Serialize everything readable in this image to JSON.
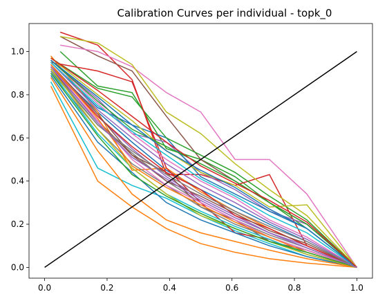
{
  "chart_data": {
    "type": "line",
    "title": "Calibration Curves per individual - topk_0",
    "xlabel": "",
    "ylabel": "",
    "xlim": [
      -0.05,
      1.05
    ],
    "ylim": [
      -0.05,
      1.13
    ],
    "xticks": [
      "0.0",
      "0.2",
      "0.4",
      "0.6",
      "0.8",
      "1.0"
    ],
    "xtick_values": [
      0.0,
      0.2,
      0.4,
      0.6,
      0.8,
      1.0
    ],
    "yticks": [
      "0.0",
      "0.2",
      "0.4",
      "0.6",
      "0.8",
      "1.0"
    ],
    "ytick_values": [
      0.0,
      0.2,
      0.4,
      0.6,
      0.8,
      1.0
    ],
    "grid": false,
    "reference_line": {
      "x": [
        0.0,
        1.0
      ],
      "y": [
        0.0,
        1.0
      ],
      "color": "#000000"
    },
    "series": [
      {
        "color": "#1f77b4",
        "x": [
          0.02,
          0.17,
          0.28,
          0.39,
          0.5,
          0.61,
          0.72,
          0.84,
          1.0
        ],
        "y": [
          0.93,
          0.72,
          0.58,
          0.45,
          0.36,
          0.28,
          0.2,
          0.12,
          0.0
        ]
      },
      {
        "color": "#ff7f0e",
        "x": [
          0.02,
          0.17,
          0.28,
          0.39,
          0.5,
          0.61,
          0.72,
          0.84,
          1.0
        ],
        "y": [
          0.84,
          0.4,
          0.28,
          0.18,
          0.11,
          0.07,
          0.04,
          0.02,
          0.0
        ]
      },
      {
        "color": "#2ca02c",
        "x": [
          0.05,
          0.17,
          0.28,
          0.39,
          0.5,
          0.61,
          0.72,
          0.84,
          1.0
        ],
        "y": [
          1.0,
          0.84,
          0.81,
          0.55,
          0.5,
          0.42,
          0.3,
          0.18,
          0.0
        ]
      },
      {
        "color": "#d62728",
        "x": [
          0.05,
          0.17,
          0.28,
          0.39,
          0.5,
          0.61,
          0.72,
          0.84,
          1.0
        ],
        "y": [
          1.09,
          1.03,
          0.87,
          0.43,
          0.43,
          0.38,
          0.43,
          0.1,
          0.0
        ]
      },
      {
        "color": "#9467bd",
        "x": [
          0.02,
          0.17,
          0.28,
          0.39,
          0.5,
          0.61,
          0.72,
          0.84,
          1.0
        ],
        "y": [
          0.96,
          0.78,
          0.62,
          0.58,
          0.44,
          0.36,
          0.26,
          0.2,
          0.0
        ]
      },
      {
        "color": "#8c564b",
        "x": [
          0.05,
          0.17,
          0.28,
          0.39,
          0.5,
          0.61,
          0.72,
          0.84,
          1.0
        ],
        "y": [
          1.07,
          0.98,
          0.91,
          0.7,
          0.5,
          0.4,
          0.3,
          0.2,
          0.0
        ]
      },
      {
        "color": "#e377c2",
        "x": [
          0.05,
          0.17,
          0.28,
          0.39,
          0.5,
          0.61,
          0.72,
          0.84,
          1.0
        ],
        "y": [
          1.03,
          1.0,
          0.93,
          0.81,
          0.72,
          0.5,
          0.5,
          0.34,
          0.0
        ]
      },
      {
        "color": "#7f7f7f",
        "x": [
          0.02,
          0.17,
          0.28,
          0.39,
          0.5,
          0.61,
          0.72,
          0.84,
          1.0
        ],
        "y": [
          0.92,
          0.66,
          0.53,
          0.4,
          0.3,
          0.22,
          0.15,
          0.09,
          0.0
        ]
      },
      {
        "color": "#bcbd22",
        "x": [
          0.05,
          0.17,
          0.28,
          0.39,
          0.5,
          0.61,
          0.72,
          0.84,
          1.0
        ],
        "y": [
          1.07,
          1.04,
          0.94,
          0.72,
          0.62,
          0.48,
          0.36,
          0.24,
          0.0
        ]
      },
      {
        "color": "#17becf",
        "x": [
          0.02,
          0.17,
          0.28,
          0.39,
          0.5,
          0.61,
          0.72,
          0.84,
          1.0
        ],
        "y": [
          0.86,
          0.46,
          0.38,
          0.32,
          0.24,
          0.17,
          0.11,
          0.05,
          0.0
        ]
      },
      {
        "color": "#1f77b4",
        "x": [
          0.02,
          0.17,
          0.28,
          0.39,
          0.5,
          0.61,
          0.72,
          0.84,
          1.0
        ],
        "y": [
          0.95,
          0.74,
          0.66,
          0.6,
          0.42,
          0.34,
          0.26,
          0.18,
          0.0
        ]
      },
      {
        "color": "#ff7f0e",
        "x": [
          0.02,
          0.17,
          0.28,
          0.39,
          0.5,
          0.61,
          0.72,
          0.84,
          1.0
        ],
        "y": [
          0.98,
          0.72,
          0.45,
          0.46,
          0.35,
          0.26,
          0.18,
          0.1,
          0.0
        ]
      },
      {
        "color": "#2ca02c",
        "x": [
          0.02,
          0.17,
          0.28,
          0.39,
          0.5,
          0.61,
          0.72,
          0.84,
          1.0
        ],
        "y": [
          0.97,
          0.83,
          0.79,
          0.6,
          0.52,
          0.44,
          0.33,
          0.22,
          0.0
        ]
      },
      {
        "color": "#d62728",
        "x": [
          0.02,
          0.17,
          0.28,
          0.39,
          0.5,
          0.61,
          0.72,
          0.84,
          1.0
        ],
        "y": [
          0.95,
          0.91,
          0.86,
          0.46,
          0.3,
          0.16,
          0.13,
          0.06,
          0.0
        ]
      },
      {
        "color": "#9467bd",
        "x": [
          0.02,
          0.17,
          0.28,
          0.39,
          0.5,
          0.61,
          0.72,
          0.84,
          1.0
        ],
        "y": [
          0.94,
          0.7,
          0.55,
          0.42,
          0.32,
          0.24,
          0.16,
          0.1,
          0.0
        ]
      },
      {
        "color": "#8c564b",
        "x": [
          0.02,
          0.17,
          0.28,
          0.39,
          0.5,
          0.61,
          0.72,
          0.84,
          1.0
        ],
        "y": [
          0.92,
          0.68,
          0.52,
          0.44,
          0.28,
          0.22,
          0.12,
          0.08,
          0.0
        ]
      },
      {
        "color": "#e377c2",
        "x": [
          0.02,
          0.17,
          0.28,
          0.39,
          0.5,
          0.61,
          0.72,
          0.84,
          1.0
        ],
        "y": [
          0.96,
          0.76,
          0.62,
          0.5,
          0.4,
          0.32,
          0.22,
          0.14,
          0.0
        ]
      },
      {
        "color": "#7f7f7f",
        "x": [
          0.02,
          0.17,
          0.28,
          0.39,
          0.5,
          0.61,
          0.72,
          0.84,
          1.0
        ],
        "y": [
          0.9,
          0.64,
          0.48,
          0.38,
          0.28,
          0.2,
          0.14,
          0.08,
          0.0
        ]
      },
      {
        "color": "#bcbd22",
        "x": [
          0.02,
          0.17,
          0.28,
          0.39,
          0.5,
          0.61,
          0.72,
          0.84,
          1.0
        ],
        "y": [
          0.97,
          0.8,
          0.68,
          0.54,
          0.44,
          0.38,
          0.28,
          0.29,
          0.0
        ]
      },
      {
        "color": "#17becf",
        "x": [
          0.02,
          0.17,
          0.28,
          0.39,
          0.5,
          0.61,
          0.72,
          0.84,
          1.0
        ],
        "y": [
          0.91,
          0.62,
          0.46,
          0.34,
          0.26,
          0.19,
          0.13,
          0.06,
          0.0
        ]
      },
      {
        "color": "#1f77b4",
        "x": [
          0.02,
          0.17,
          0.28,
          0.39,
          0.5,
          0.61,
          0.72,
          0.84,
          1.0
        ],
        "y": [
          0.89,
          0.58,
          0.44,
          0.3,
          0.22,
          0.16,
          0.1,
          0.05,
          0.0
        ]
      },
      {
        "color": "#ff7f0e",
        "x": [
          0.02,
          0.17,
          0.28,
          0.39,
          0.5,
          0.61,
          0.72,
          0.84,
          1.0
        ],
        "y": [
          0.88,
          0.54,
          0.34,
          0.22,
          0.16,
          0.12,
          0.08,
          0.04,
          0.0
        ]
      },
      {
        "color": "#2ca02c",
        "x": [
          0.02,
          0.17,
          0.28,
          0.39,
          0.5,
          0.61,
          0.72,
          0.84,
          1.0
        ],
        "y": [
          0.96,
          0.77,
          0.64,
          0.56,
          0.48,
          0.4,
          0.3,
          0.2,
          0.0
        ]
      },
      {
        "color": "#d62728",
        "x": [
          0.02,
          0.17,
          0.28,
          0.39,
          0.5,
          0.61,
          0.72,
          0.84,
          1.0
        ],
        "y": [
          0.93,
          0.7,
          0.56,
          0.44,
          0.36,
          0.24,
          0.18,
          0.1,
          0.0
        ]
      },
      {
        "color": "#9467bd",
        "x": [
          0.02,
          0.17,
          0.28,
          0.39,
          0.5,
          0.61,
          0.72,
          0.84,
          1.0
        ],
        "y": [
          0.95,
          0.73,
          0.6,
          0.48,
          0.38,
          0.3,
          0.21,
          0.13,
          0.0
        ]
      },
      {
        "color": "#8c564b",
        "x": [
          0.02,
          0.17,
          0.28,
          0.39,
          0.5,
          0.61,
          0.72,
          0.84,
          1.0
        ],
        "y": [
          0.94,
          0.71,
          0.52,
          0.4,
          0.33,
          0.25,
          0.17,
          0.11,
          0.0
        ]
      },
      {
        "color": "#e377c2",
        "x": [
          0.02,
          0.17,
          0.28,
          0.39,
          0.5,
          0.61,
          0.72,
          0.84,
          1.0
        ],
        "y": [
          0.93,
          0.68,
          0.5,
          0.38,
          0.3,
          0.22,
          0.14,
          0.08,
          0.0
        ]
      },
      {
        "color": "#7f7f7f",
        "x": [
          0.02,
          0.17,
          0.28,
          0.39,
          0.5,
          0.61,
          0.72,
          0.84,
          1.0
        ],
        "y": [
          0.91,
          0.66,
          0.54,
          0.43,
          0.34,
          0.26,
          0.19,
          0.12,
          0.0
        ]
      },
      {
        "color": "#bcbd22",
        "x": [
          0.02,
          0.17,
          0.28,
          0.39,
          0.5,
          0.61,
          0.72,
          0.84,
          1.0
        ],
        "y": [
          0.92,
          0.64,
          0.46,
          0.34,
          0.24,
          0.18,
          0.12,
          0.06,
          0.0
        ]
      },
      {
        "color": "#17becf",
        "x": [
          0.02,
          0.17,
          0.28,
          0.39,
          0.5,
          0.61,
          0.72,
          0.84,
          1.0
        ],
        "y": [
          0.95,
          0.75,
          0.63,
          0.52,
          0.41,
          0.33,
          0.24,
          0.16,
          0.0
        ]
      },
      {
        "color": "#1f77b4",
        "x": [
          0.02,
          0.17,
          0.28,
          0.39,
          0.5,
          0.61,
          0.72,
          0.84,
          1.0
        ],
        "y": [
          0.96,
          0.79,
          0.66,
          0.54,
          0.45,
          0.37,
          0.27,
          0.18,
          0.0
        ]
      },
      {
        "color": "#ff7f0e",
        "x": [
          0.02,
          0.17,
          0.28,
          0.39,
          0.5,
          0.61,
          0.72,
          0.84,
          1.0
        ],
        "y": [
          0.94,
          0.69,
          0.47,
          0.37,
          0.29,
          0.21,
          0.14,
          0.07,
          0.0
        ]
      },
      {
        "color": "#2ca02c",
        "x": [
          0.02,
          0.17,
          0.28,
          0.39,
          0.5,
          0.61,
          0.72,
          0.84,
          1.0
        ],
        "y": [
          0.9,
          0.61,
          0.43,
          0.33,
          0.25,
          0.18,
          0.12,
          0.07,
          0.0
        ]
      },
      {
        "color": "#d62728",
        "x": [
          0.02,
          0.17,
          0.28,
          0.39,
          0.5,
          0.61,
          0.72,
          0.84,
          1.0
        ],
        "y": [
          0.97,
          0.82,
          0.7,
          0.58,
          0.47,
          0.39,
          0.31,
          0.21,
          0.0
        ]
      },
      {
        "color": "#9467bd",
        "x": [
          0.02,
          0.17,
          0.28,
          0.39,
          0.5,
          0.61,
          0.72,
          0.84,
          1.0
        ],
        "y": [
          0.93,
          0.67,
          0.51,
          0.41,
          0.31,
          0.23,
          0.16,
          0.09,
          0.0
        ]
      }
    ]
  }
}
